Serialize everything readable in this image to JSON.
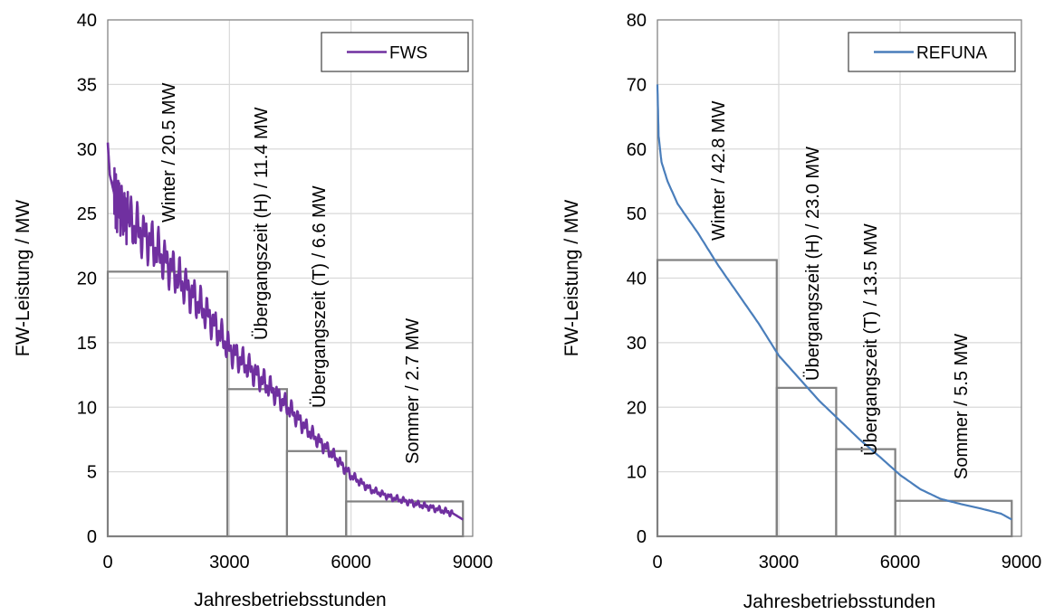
{
  "chart_data": [
    {
      "type": "line",
      "xlabel": "Jahresbetriebsstunden",
      "ylabel": "FW-Leistung / MW",
      "xlim": [
        0,
        9000
      ],
      "ylim": [
        0,
        40
      ],
      "xticks": [
        "0",
        "3000",
        "6000",
        "9000"
      ],
      "yticks": [
        "0",
        "5",
        "10",
        "15",
        "20",
        "25",
        "30",
        "35",
        "40"
      ],
      "grid": true,
      "legend_position": "top-right",
      "series": [
        {
          "name": "FWS",
          "color": "#7030a0",
          "x": [
            0,
            50,
            200,
            500,
            1000,
            1500,
            2000,
            2500,
            3000,
            3500,
            4000,
            4500,
            5000,
            5500,
            6000,
            6500,
            7000,
            7500,
            8000,
            8500,
            8760
          ],
          "y": [
            30.5,
            28,
            26,
            24.5,
            23,
            21,
            19,
            17,
            14.5,
            13,
            11.5,
            9.8,
            8,
            6.5,
            4.7,
            3.6,
            3.0,
            2.6,
            2.2,
            1.8,
            1.3
          ]
        }
      ],
      "steps": [
        {
          "x0": 0,
          "x1": 2950,
          "y": 20.5,
          "label": "Winter / 20.5 MW"
        },
        {
          "x0": 2950,
          "x1": 4420,
          "y": 11.4,
          "label": "Übergangszeit (H) / 11.4 MW"
        },
        {
          "x0": 4420,
          "x1": 5880,
          "y": 6.6,
          "label": "Übergangszeit (T) / 6.6 MW"
        },
        {
          "x0": 5880,
          "x1": 8760,
          "y": 2.7,
          "label": "Sommer / 2.7 MW"
        }
      ]
    },
    {
      "type": "line",
      "xlabel": "Jahresbetriebsstunden",
      "ylabel": "FW-Leistung / MW",
      "xlim": [
        0,
        9000
      ],
      "ylim": [
        0,
        80
      ],
      "xticks": [
        "0",
        "3000",
        "6000",
        "9000"
      ],
      "yticks": [
        "0",
        "10",
        "20",
        "30",
        "40",
        "50",
        "60",
        "70",
        "80"
      ],
      "grid": true,
      "legend_position": "top-right",
      "series": [
        {
          "name": "REFUNA",
          "color": "#4a7ebb",
          "x": [
            0,
            30,
            100,
            250,
            500,
            1000,
            1500,
            2000,
            2500,
            3000,
            3500,
            4000,
            4500,
            5000,
            5500,
            6000,
            6500,
            7000,
            7500,
            8000,
            8500,
            8760
          ],
          "y": [
            70,
            62,
            58,
            55,
            51.5,
            47,
            42,
            37.5,
            33,
            28,
            24.5,
            21,
            18,
            15,
            12.3,
            9.5,
            7.3,
            5.8,
            5.0,
            4.3,
            3.5,
            2.6
          ]
        }
      ],
      "steps": [
        {
          "x0": 0,
          "x1": 2950,
          "y": 42.8,
          "label": "Winter / 42.8 MW"
        },
        {
          "x0": 2950,
          "x1": 4420,
          "y": 23.0,
          "label": "Übergangszeit (H) / 23.0 MW"
        },
        {
          "x0": 4420,
          "x1": 5880,
          "y": 13.5,
          "label": "Übergangszeit (T) / 13.5 MW"
        },
        {
          "x0": 5880,
          "x1": 8760,
          "y": 5.5,
          "label": "Sommer / 5.5 MW"
        }
      ]
    }
  ]
}
